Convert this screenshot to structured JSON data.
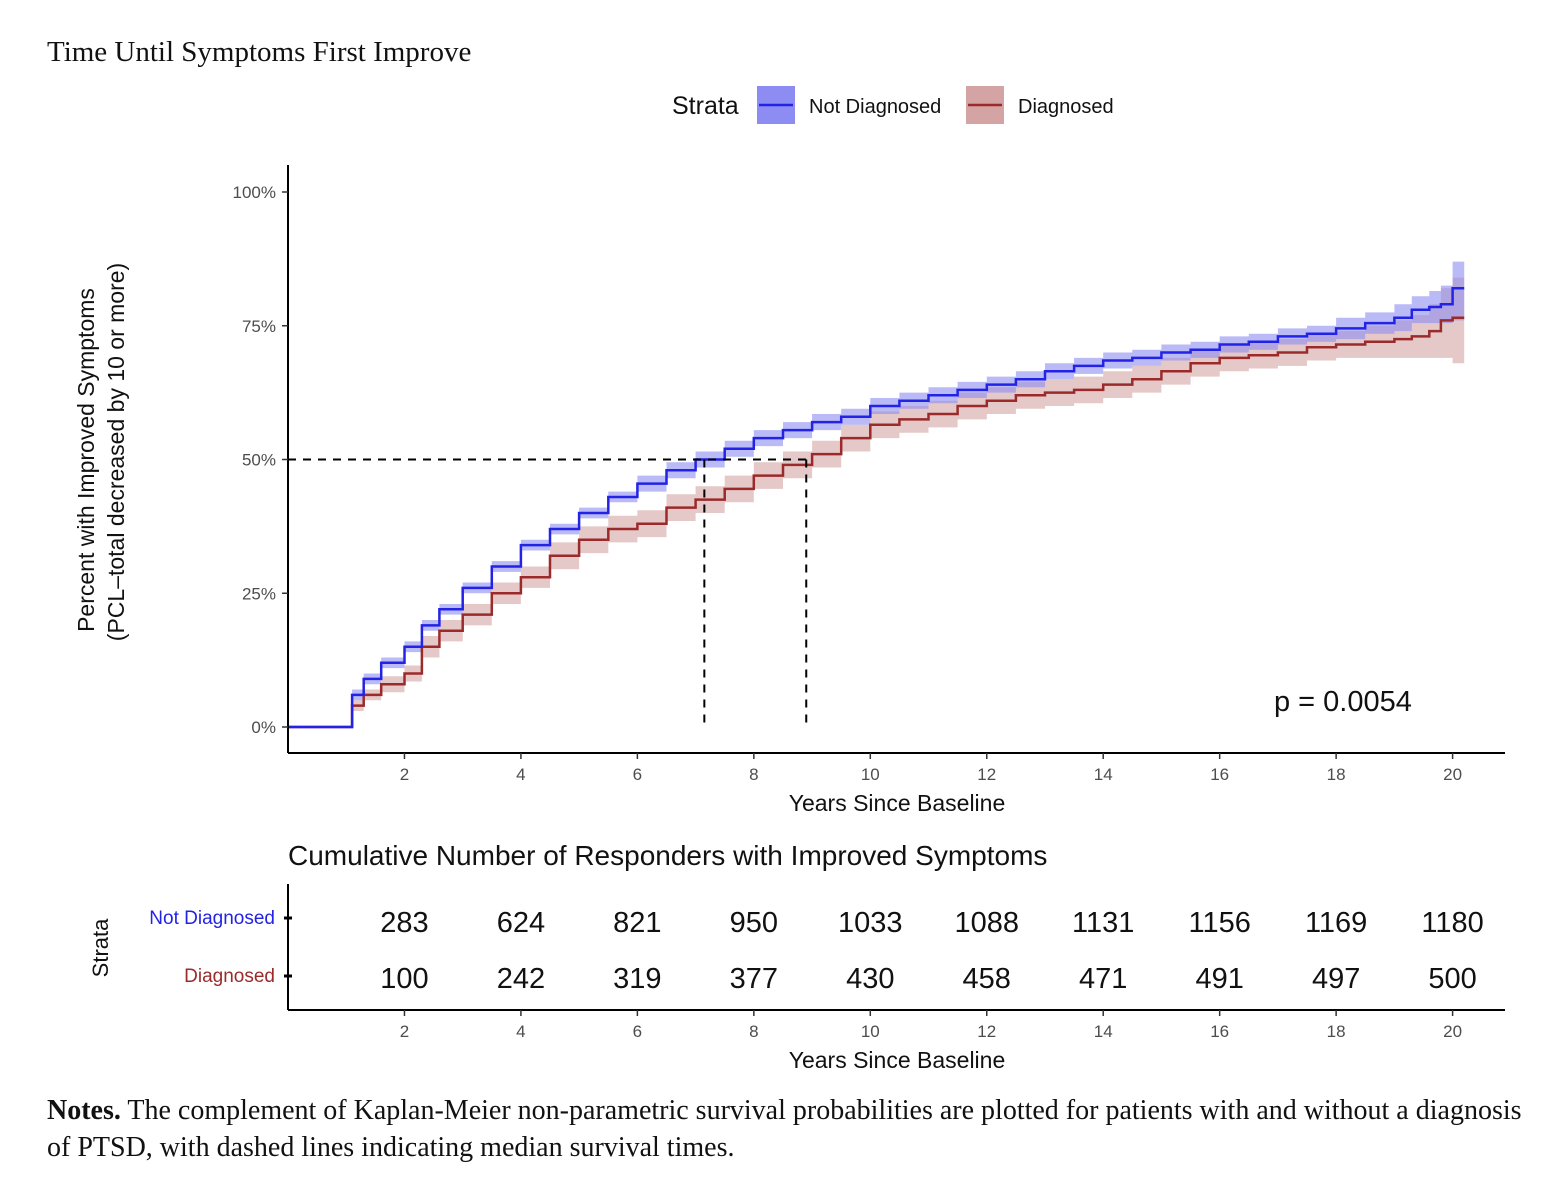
{
  "figure": {
    "title": "Time Until Symptoms First Improve",
    "notes_label": "Notes.",
    "notes_text": " The complement of Kaplan-Meier non-parametric survival probabilities are plotted for patients with and without a diagnosis of PTSD, with dashed lines indicating median survival times."
  },
  "colors": {
    "not_diagnosed": "#2323e6",
    "not_diagnosed_band": "#8c8cf2",
    "diagnosed": "#9b2b2b",
    "diagnosed_band": "#d4a3a3"
  },
  "chart_data": [
    {
      "type": "line",
      "title": "",
      "legend_title": "Strata",
      "legend_position": "top",
      "xlabel": "Years Since Baseline",
      "ylabel_line1": "Percent with Improved Symptoms",
      "ylabel_line2": "(PCL–total decreased by 10 or more)",
      "xlim": [
        0,
        20.9
      ],
      "ylim": [
        0,
        1
      ],
      "x_ticks": [
        2,
        4,
        6,
        8,
        10,
        12,
        14,
        16,
        18,
        20
      ],
      "y_ticks": [
        0,
        0.25,
        0.5,
        0.75,
        1.0
      ],
      "y_tick_labels": [
        "0%",
        "25%",
        "50%",
        "75%",
        "100%"
      ],
      "grid": false,
      "annotation": "p = 0.0054",
      "medians": [
        {
          "series": "Not Diagnosed",
          "x": 7.15,
          "y": 0.5
        },
        {
          "series": "Diagnosed",
          "x": 8.9,
          "y": 0.5
        }
      ],
      "series": [
        {
          "name": "Not Diagnosed",
          "x": [
            0,
            0.95,
            1.1,
            1.3,
            1.6,
            2.0,
            2.3,
            2.6,
            3.0,
            3.5,
            4.0,
            4.5,
            5.0,
            5.5,
            6.0,
            6.5,
            7.0,
            7.5,
            8.0,
            8.5,
            9.0,
            9.5,
            10.0,
            10.5,
            11.0,
            11.5,
            12.0,
            12.5,
            13.0,
            13.5,
            14.0,
            14.5,
            15.0,
            15.5,
            16.0,
            16.5,
            17.0,
            17.5,
            18.0,
            18.5,
            19.0,
            19.3,
            19.6,
            19.8,
            20.0,
            20.2
          ],
          "y": [
            0,
            0,
            0.06,
            0.09,
            0.12,
            0.15,
            0.19,
            0.22,
            0.26,
            0.3,
            0.34,
            0.37,
            0.4,
            0.43,
            0.455,
            0.48,
            0.5,
            0.52,
            0.54,
            0.555,
            0.57,
            0.58,
            0.6,
            0.61,
            0.62,
            0.63,
            0.64,
            0.65,
            0.665,
            0.675,
            0.685,
            0.69,
            0.7,
            0.705,
            0.715,
            0.72,
            0.73,
            0.735,
            0.745,
            0.755,
            0.765,
            0.78,
            0.785,
            0.79,
            0.82,
            0.82
          ],
          "ci_lower": [
            0,
            0,
            0.05,
            0.08,
            0.11,
            0.14,
            0.18,
            0.21,
            0.25,
            0.29,
            0.33,
            0.36,
            0.39,
            0.42,
            0.44,
            0.465,
            0.485,
            0.505,
            0.525,
            0.54,
            0.555,
            0.565,
            0.585,
            0.595,
            0.605,
            0.615,
            0.625,
            0.635,
            0.65,
            0.66,
            0.67,
            0.675,
            0.685,
            0.69,
            0.7,
            0.705,
            0.715,
            0.72,
            0.725,
            0.735,
            0.74,
            0.755,
            0.755,
            0.755,
            0.76,
            0.76
          ],
          "ci_upper": [
            0,
            0,
            0.07,
            0.1,
            0.13,
            0.16,
            0.2,
            0.23,
            0.27,
            0.31,
            0.35,
            0.38,
            0.41,
            0.44,
            0.47,
            0.495,
            0.515,
            0.535,
            0.555,
            0.57,
            0.585,
            0.595,
            0.615,
            0.625,
            0.635,
            0.645,
            0.655,
            0.665,
            0.68,
            0.69,
            0.7,
            0.705,
            0.715,
            0.72,
            0.73,
            0.735,
            0.745,
            0.75,
            0.765,
            0.775,
            0.79,
            0.805,
            0.815,
            0.825,
            0.87,
            0.87
          ],
          "risk_x": [
            2,
            4,
            6,
            8,
            10,
            12,
            14,
            16,
            18,
            20
          ],
          "risk_values": [
            "283",
            "624",
            "821",
            "950",
            "1033",
            "1088",
            "1131",
            "1156",
            "1169",
            "1180"
          ]
        },
        {
          "name": "Diagnosed",
          "x": [
            0,
            0.95,
            1.1,
            1.3,
            1.6,
            2.0,
            2.3,
            2.6,
            3.0,
            3.5,
            4.0,
            4.5,
            5.0,
            5.5,
            6.0,
            6.5,
            7.0,
            7.5,
            8.0,
            8.5,
            9.0,
            9.5,
            10.0,
            10.5,
            11.0,
            11.5,
            12.0,
            12.5,
            13.0,
            13.5,
            14.0,
            14.5,
            15.0,
            15.5,
            16.0,
            16.5,
            17.0,
            17.5,
            18.0,
            18.5,
            19.0,
            19.3,
            19.6,
            19.8,
            20.0,
            20.2
          ],
          "y": [
            0,
            0,
            0.04,
            0.06,
            0.08,
            0.1,
            0.15,
            0.18,
            0.21,
            0.25,
            0.28,
            0.32,
            0.35,
            0.37,
            0.38,
            0.41,
            0.425,
            0.445,
            0.47,
            0.49,
            0.51,
            0.54,
            0.565,
            0.575,
            0.585,
            0.6,
            0.61,
            0.62,
            0.625,
            0.63,
            0.64,
            0.65,
            0.665,
            0.68,
            0.69,
            0.695,
            0.7,
            0.71,
            0.715,
            0.72,
            0.725,
            0.73,
            0.74,
            0.76,
            0.765,
            0.765
          ],
          "ci_lower": [
            0,
            0,
            0.03,
            0.05,
            0.065,
            0.085,
            0.13,
            0.16,
            0.19,
            0.23,
            0.26,
            0.295,
            0.325,
            0.345,
            0.355,
            0.385,
            0.4,
            0.42,
            0.445,
            0.465,
            0.485,
            0.515,
            0.54,
            0.55,
            0.56,
            0.575,
            0.585,
            0.595,
            0.6,
            0.605,
            0.615,
            0.625,
            0.64,
            0.655,
            0.665,
            0.67,
            0.675,
            0.685,
            0.69,
            0.69,
            0.69,
            0.69,
            0.69,
            0.69,
            0.68,
            0.68
          ],
          "ci_upper": [
            0,
            0,
            0.05,
            0.07,
            0.095,
            0.115,
            0.17,
            0.2,
            0.23,
            0.27,
            0.3,
            0.345,
            0.375,
            0.395,
            0.405,
            0.435,
            0.45,
            0.47,
            0.495,
            0.515,
            0.535,
            0.565,
            0.59,
            0.6,
            0.61,
            0.625,
            0.635,
            0.645,
            0.65,
            0.655,
            0.665,
            0.675,
            0.69,
            0.705,
            0.715,
            0.72,
            0.725,
            0.735,
            0.74,
            0.75,
            0.76,
            0.77,
            0.79,
            0.82,
            0.84,
            0.84
          ],
          "risk_x": [
            2,
            4,
            6,
            8,
            10,
            12,
            14,
            16,
            18,
            20
          ],
          "risk_values": [
            "100",
            "242",
            "319",
            "377",
            "430",
            "458",
            "471",
            "491",
            "497",
            "500"
          ]
        }
      ]
    },
    {
      "type": "table",
      "title": "Cumulative Number of Responders with Improved Symptoms",
      "ylabel": "Strata",
      "xlabel": "Years Since Baseline",
      "x_ticks": [
        2,
        4,
        6,
        8,
        10,
        12,
        14,
        16,
        18,
        20
      ],
      "rows": [
        "Not Diagnosed",
        "Diagnosed"
      ]
    }
  ]
}
